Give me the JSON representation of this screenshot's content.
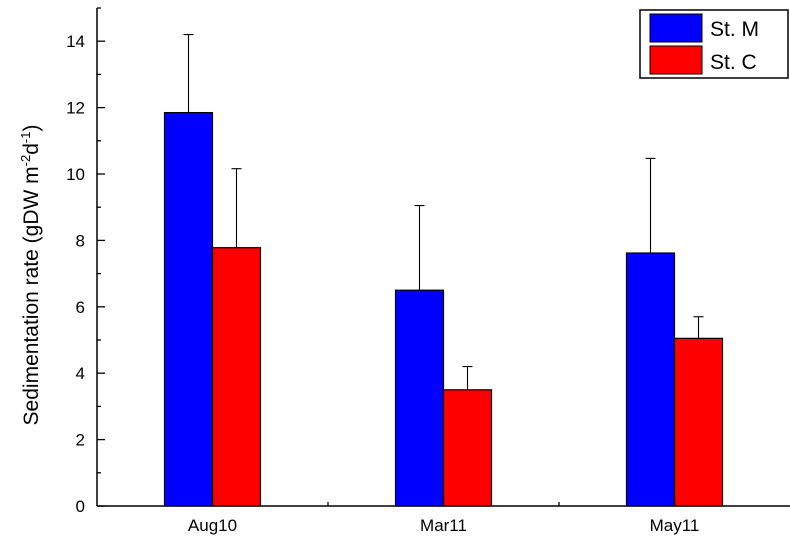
{
  "chart_data": {
    "type": "bar",
    "categories": [
      "Aug10",
      "Mar11",
      "May11"
    ],
    "series": [
      {
        "name": "St. M",
        "color": "#0000ff",
        "values": [
          11.85,
          6.5,
          7.62
        ],
        "errors": [
          2.35,
          2.55,
          2.85
        ]
      },
      {
        "name": "St. C",
        "color": "#ff0000",
        "values": [
          7.78,
          3.5,
          5.05
        ],
        "errors": [
          2.38,
          0.7,
          0.65
        ]
      }
    ],
    "ylabel": {
      "main": "Sedimentation rate (gDW m",
      "sup1": "-2",
      "mid": "d",
      "sup2": "-1",
      "end": ")"
    },
    "ylim": [
      0,
      15
    ],
    "yticks": [
      "0",
      "2",
      "4",
      "6",
      "8",
      "10",
      "12",
      "14"
    ],
    "legend_position": "top-right",
    "grid": false
  }
}
